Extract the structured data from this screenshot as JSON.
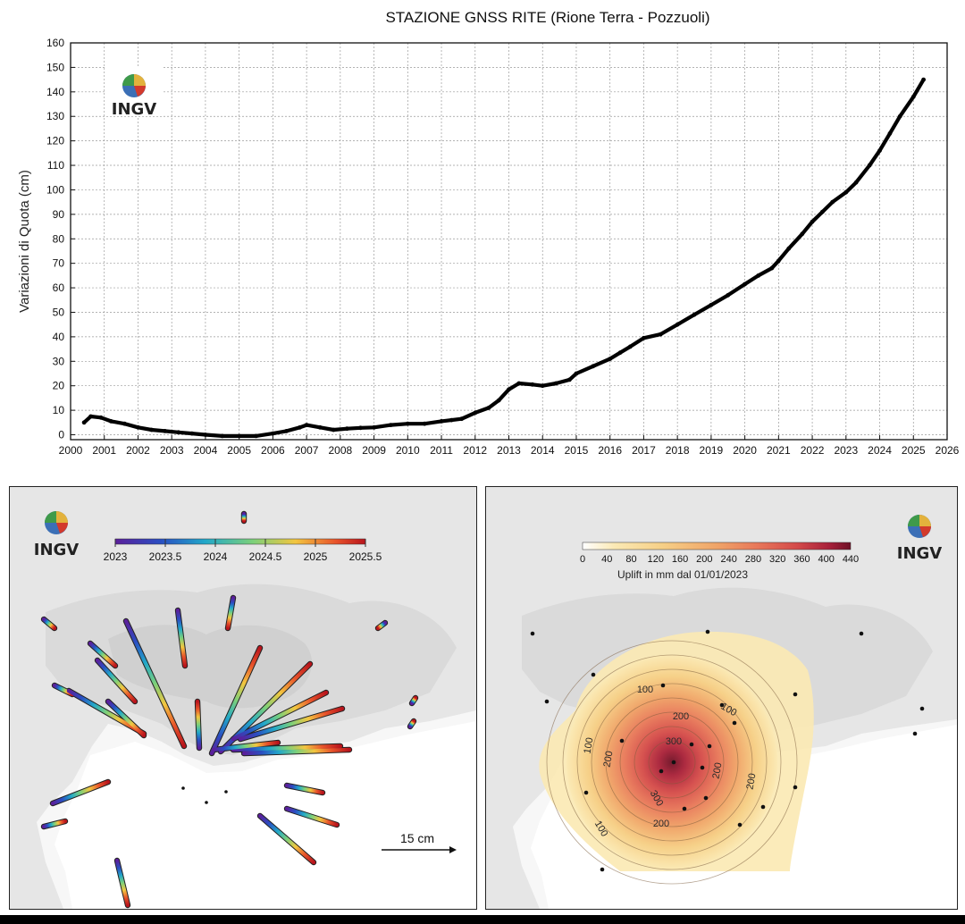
{
  "chart_data": [
    {
      "type": "line",
      "title": "STAZIONE GNSS RITE (Rione Terra - Pozzuoli)",
      "xlabel": "",
      "ylabel": "Variazioni di Quota (cm)",
      "xlim": [
        2000,
        2026
      ],
      "ylim": [
        -2,
        160
      ],
      "xticks": [
        "2000",
        "2001",
        "2002",
        "2003",
        "2004",
        "2005",
        "2006",
        "2007",
        "2008",
        "2009",
        "2010",
        "2011",
        "2012",
        "2013",
        "2014",
        "2015",
        "2016",
        "2017",
        "2018",
        "2019",
        "2020",
        "2021",
        "2022",
        "2023",
        "2024",
        "2025",
        "2026"
      ],
      "yticks": [
        "0",
        "10",
        "20",
        "30",
        "40",
        "50",
        "60",
        "70",
        "80",
        "90",
        "100",
        "110",
        "120",
        "130",
        "140",
        "150",
        "160"
      ],
      "grid": true,
      "series": [
        {
          "x": [
            2000.4,
            2000.6,
            2000.9,
            2001.2,
            2001.6,
            2002.0,
            2002.4,
            2002.8,
            2003.2,
            2003.6,
            2004.0,
            2004.5,
            2005.0,
            2005.5,
            2006.0,
            2006.4,
            2006.8,
            2007.0,
            2007.4,
            2007.8,
            2008.2,
            2008.6,
            2009.0,
            2009.5,
            2010.0,
            2010.5,
            2011.0,
            2011.3,
            2011.6,
            2012.0,
            2012.4,
            2012.7,
            2013.0,
            2013.3,
            2013.7,
            2014.0,
            2014.4,
            2014.8,
            2015.0,
            2015.5,
            2016.0,
            2016.3,
            2016.6,
            2017.0,
            2017.5,
            2018.0,
            2018.5,
            2019.0,
            2019.5,
            2020.0,
            2020.4,
            2020.8,
            2021.0,
            2021.3,
            2021.7,
            2022.0,
            2022.3,
            2022.6,
            2023.0,
            2023.3,
            2023.7,
            2024.0,
            2024.3,
            2024.6,
            2025.0,
            2025.3
          ],
          "y": [
            5.0,
            7.5,
            7.0,
            5.5,
            4.5,
            3.0,
            2.0,
            1.5,
            1.0,
            0.5,
            0.0,
            -0.5,
            -0.5,
            -0.5,
            0.5,
            1.5,
            3.0,
            4.0,
            3.0,
            2.0,
            2.5,
            2.8,
            3.0,
            4.0,
            4.5,
            4.5,
            5.5,
            6.0,
            6.5,
            9.0,
            11.0,
            14.0,
            18.5,
            21.0,
            20.5,
            20.0,
            21.0,
            22.5,
            25.0,
            28.0,
            31.0,
            33.5,
            36.0,
            39.5,
            41.0,
            45.0,
            49.0,
            53.0,
            57.0,
            61.5,
            65.0,
            68.0,
            71.0,
            76.0,
            82.0,
            87.0,
            91.0,
            95.0,
            99.0,
            103.0,
            110.0,
            116.0,
            123.0,
            130.0,
            138.0,
            145.0
          ]
        }
      ]
    },
    {
      "type": "map",
      "legend": {
        "ticks": [
          "2023",
          "2023.5",
          "2024",
          "2024.5",
          "2025",
          "2025.5"
        ],
        "stops": [
          "#5b1f9a",
          "#2a4ec2",
          "#22a8c9",
          "#7cd07a",
          "#f2c640",
          "#e8542b",
          "#b8141c"
        ]
      },
      "scale_label": "15 cm",
      "logo": "INGV"
    },
    {
      "type": "heatmap",
      "colorbar": {
        "ticks": [
          "0",
          "40",
          "80",
          "120",
          "160",
          "200",
          "240",
          "280",
          "320",
          "360",
          "400",
          "440"
        ],
        "label": "Uplift in mm dal 01/01/2023",
        "stops": [
          "#ffffff",
          "#fbe9b4",
          "#f6cf86",
          "#f0a468",
          "#e8785a",
          "#d44a4a",
          "#a8203a",
          "#6e1026"
        ]
      },
      "contour_labels": [
        "100",
        "100",
        "200",
        "300",
        "200",
        "300",
        "200",
        "100",
        "100",
        "200",
        "200"
      ],
      "logo": "INGV"
    }
  ]
}
